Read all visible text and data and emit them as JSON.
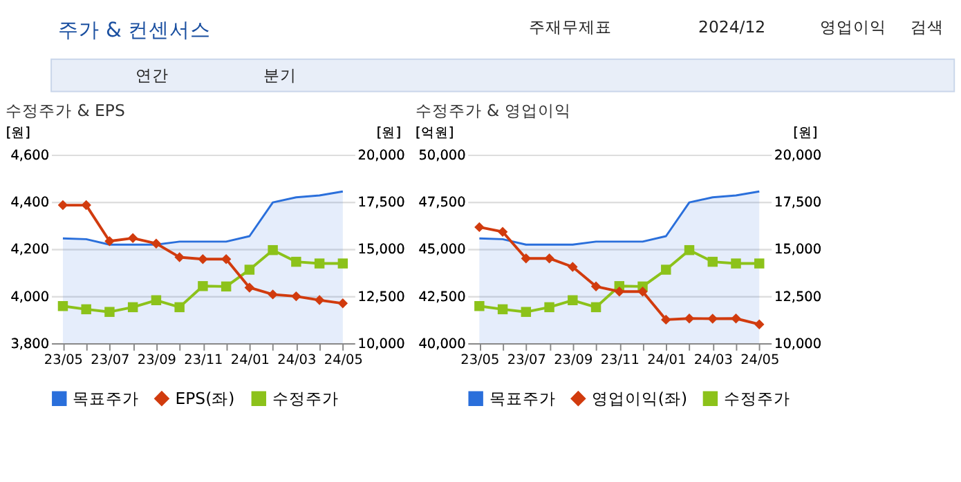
{
  "chart_data": [
    {
      "type": "other",
      "title": "주가 & 컨센서스",
      "annotations": [
        "주재무제표",
        "2024/12",
        "영업이익",
        "검색",
        "연간",
        "분기"
      ]
    },
    {
      "type": "line",
      "title": "수정주가 & EPS",
      "categories": [
        "23/05",
        null,
        "23/07",
        null,
        "23/09",
        null,
        "23/11",
        null,
        "24/01",
        null,
        "24/03",
        null,
        "24/05"
      ],
      "ylabel": "[원]",
      "y2label": "[원]",
      "ylim": [
        3800,
        4600
      ],
      "yticks": [
        {
          "value": 3800,
          "label": "3,800"
        },
        {
          "value": 4000,
          "label": "4,000"
        },
        {
          "value": 4200,
          "label": "4,200"
        },
        {
          "value": 4400,
          "label": "4,400"
        },
        {
          "value": 4600,
          "label": "4,600"
        }
      ],
      "y2lim": [
        10000,
        20000
      ],
      "y2ticks": [
        {
          "value": 10000,
          "label": "10,000"
        },
        {
          "value": 12500,
          "label": "12,500"
        },
        {
          "value": 15000,
          "label": "15,000"
        },
        {
          "value": 17500,
          "label": "17,500"
        },
        {
          "value": 20000,
          "label": "20,000"
        }
      ],
      "grid": "y",
      "legend": "bottom",
      "series": [
        {
          "name": "목표주가",
          "type": "area",
          "axis": "y2",
          "color": "#2a6fdb",
          "values": [
            15560,
            15520,
            15230,
            15230,
            15230,
            15390,
            15390,
            15390,
            15680,
            17470,
            17740,
            17840,
            18050
          ]
        },
        {
          "name": "EPS(좌)",
          "type": "line",
          "marker": "diamond",
          "color": "#d13b0e",
          "values": [
            4386,
            4386,
            4233,
            4246,
            4223,
            4165,
            4157,
            4157,
            4036,
            4007,
            3999,
            3983,
            3969
          ]
        },
        {
          "name": "수정주가",
          "type": "line",
          "axis": "y2",
          "marker": "square",
          "color": "#8cc21a",
          "values": [
            11970,
            11800,
            11660,
            11910,
            12280,
            11910,
            13030,
            13010,
            13900,
            14940,
            14320,
            14230,
            14230
          ]
        }
      ]
    },
    {
      "type": "line",
      "title": "수정주가 & 영업이익",
      "categories": [
        "23/05",
        null,
        "23/07",
        null,
        "23/09",
        null,
        "23/11",
        null,
        "24/01",
        null,
        "24/03",
        null,
        "24/05"
      ],
      "ylabel": "[억원]",
      "y2label": "[원]",
      "ylim": [
        40000,
        50000
      ],
      "yticks": [
        {
          "value": 40000,
          "label": "40,000"
        },
        {
          "value": 42500,
          "label": "42,500"
        },
        {
          "value": 45000,
          "label": "45,000"
        },
        {
          "value": 47500,
          "label": "47,500"
        },
        {
          "value": 50000,
          "label": "50,000"
        }
      ],
      "y2lim": [
        10000,
        20000
      ],
      "y2ticks": [
        {
          "value": 10000,
          "label": "10,000"
        },
        {
          "value": 12500,
          "label": "12,500"
        },
        {
          "value": 15000,
          "label": "15,000"
        },
        {
          "value": 17500,
          "label": "17,500"
        },
        {
          "value": 20000,
          "label": "20,000"
        }
      ],
      "grid": "y",
      "legend": "bottom",
      "series": [
        {
          "name": "목표주가",
          "type": "area",
          "axis": "y2",
          "color": "#2a6fdb",
          "values": [
            15560,
            15520,
            15230,
            15230,
            15230,
            15390,
            15390,
            15390,
            15680,
            17470,
            17740,
            17840,
            18050
          ]
        },
        {
          "name": "영업이익(좌)",
          "type": "line",
          "marker": "diamond",
          "color": "#d13b0e",
          "values": [
            46160,
            45910,
            44500,
            44500,
            44050,
            43010,
            42740,
            42740,
            41250,
            41310,
            41300,
            41310,
            41000
          ]
        },
        {
          "name": "수정주가",
          "type": "line",
          "axis": "y2",
          "marker": "square",
          "color": "#8cc21a",
          "values": [
            11970,
            11800,
            11660,
            11910,
            12280,
            11910,
            13030,
            13010,
            13900,
            14940,
            14320,
            14230,
            14230
          ]
        }
      ]
    }
  ]
}
